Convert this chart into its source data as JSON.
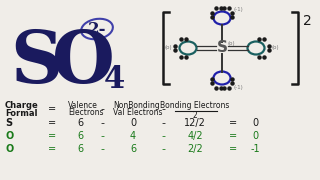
{
  "bg_color": "#f0ede8",
  "formula_color": "#1a1a5e",
  "ellipse_color": "#4040aa",
  "bracket_color": "#1a1a1a",
  "S_struct_color": "#555555",
  "O_double_color": "#1a6060",
  "O_single_color": "#2020aa",
  "dot_color": "#1a1a1a",
  "table_header_color": "#1a1a1a",
  "table_S_color": "#1a1a1a",
  "table_O_color": "#1a7a1a",
  "rows": [
    {
      "atom": "S",
      "valence": "6",
      "nonbonding": "0",
      "bonding": "12/2",
      "formal": "0"
    },
    {
      "atom": "O",
      "valence": "6",
      "nonbonding": "4",
      "bonding": "4/2",
      "formal": "0"
    },
    {
      "atom": "O",
      "valence": "6",
      "nonbonding": "6",
      "bonding": "2/2",
      "formal": "-1"
    }
  ]
}
